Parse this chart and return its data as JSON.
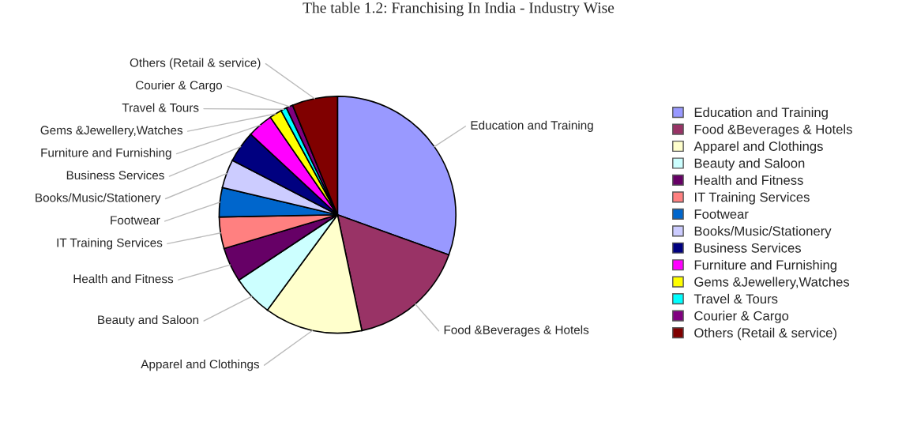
{
  "chart_data": {
    "type": "pie",
    "title": "The table 1.2: Franchising In India - Industry Wise",
    "categories": [
      "Education and Training",
      "Food &Beverages & Hotels",
      "Apparel and Clothings",
      "Beauty and Saloon",
      "Health and Fitness",
      "IT Training Services",
      "Footwear",
      "Books/Music/Stationery",
      "Business Services",
      "Furniture and Furnishing",
      "Gems &Jewellery,Watches",
      "Travel & Tours",
      "Courier & Cargo",
      "Others (Retail & service)"
    ],
    "values": [
      30.5,
      16.2,
      13.4,
      5.6,
      4.7,
      4.3,
      4.0,
      3.9,
      4.3,
      3.5,
      1.7,
      0.8,
      0.9,
      6.2
    ],
    "colors": [
      "#9999ff",
      "#993366",
      "#ffffcc",
      "#ccffff",
      "#660066",
      "#ff8080",
      "#0066cc",
      "#ccccff",
      "#000080",
      "#ff00ff",
      "#ffff00",
      "#00ffff",
      "#800080",
      "#800000"
    ],
    "legend": "right"
  }
}
